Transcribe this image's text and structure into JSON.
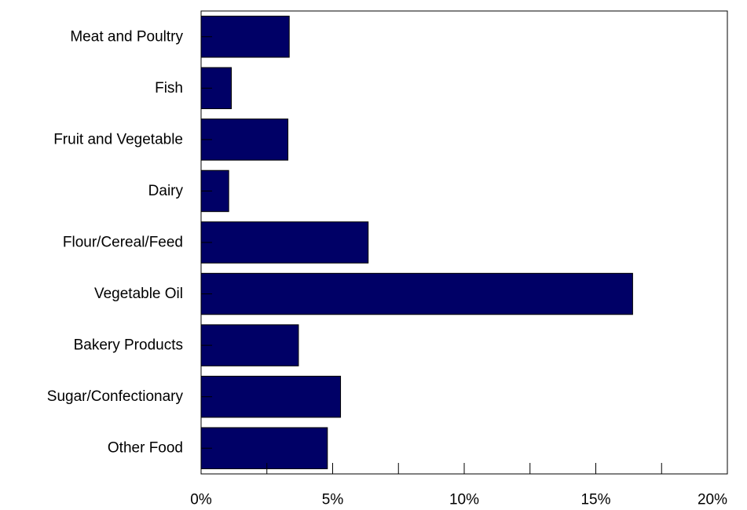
{
  "chart_data": {
    "type": "bar",
    "orientation": "horizontal",
    "categories": [
      "Meat and Poultry",
      "Fish",
      "Fruit and Vegetable",
      "Dairy",
      "Flour/Cereal/Feed",
      "Vegetable Oil",
      "Bakery Products",
      "Sugar/Confectionary",
      "Other Food"
    ],
    "values": [
      3.35,
      1.15,
      3.3,
      1.05,
      6.35,
      16.4,
      3.7,
      5.3,
      4.8
    ],
    "xlim": [
      0,
      20
    ],
    "x_ticks": [
      0,
      5,
      10,
      15,
      20
    ],
    "x_tick_labels": [
      "0%",
      "5%",
      "10%",
      "15%",
      "20%"
    ],
    "bar_color": "#000066",
    "grid": false,
    "title": "",
    "xlabel": "",
    "ylabel": ""
  }
}
